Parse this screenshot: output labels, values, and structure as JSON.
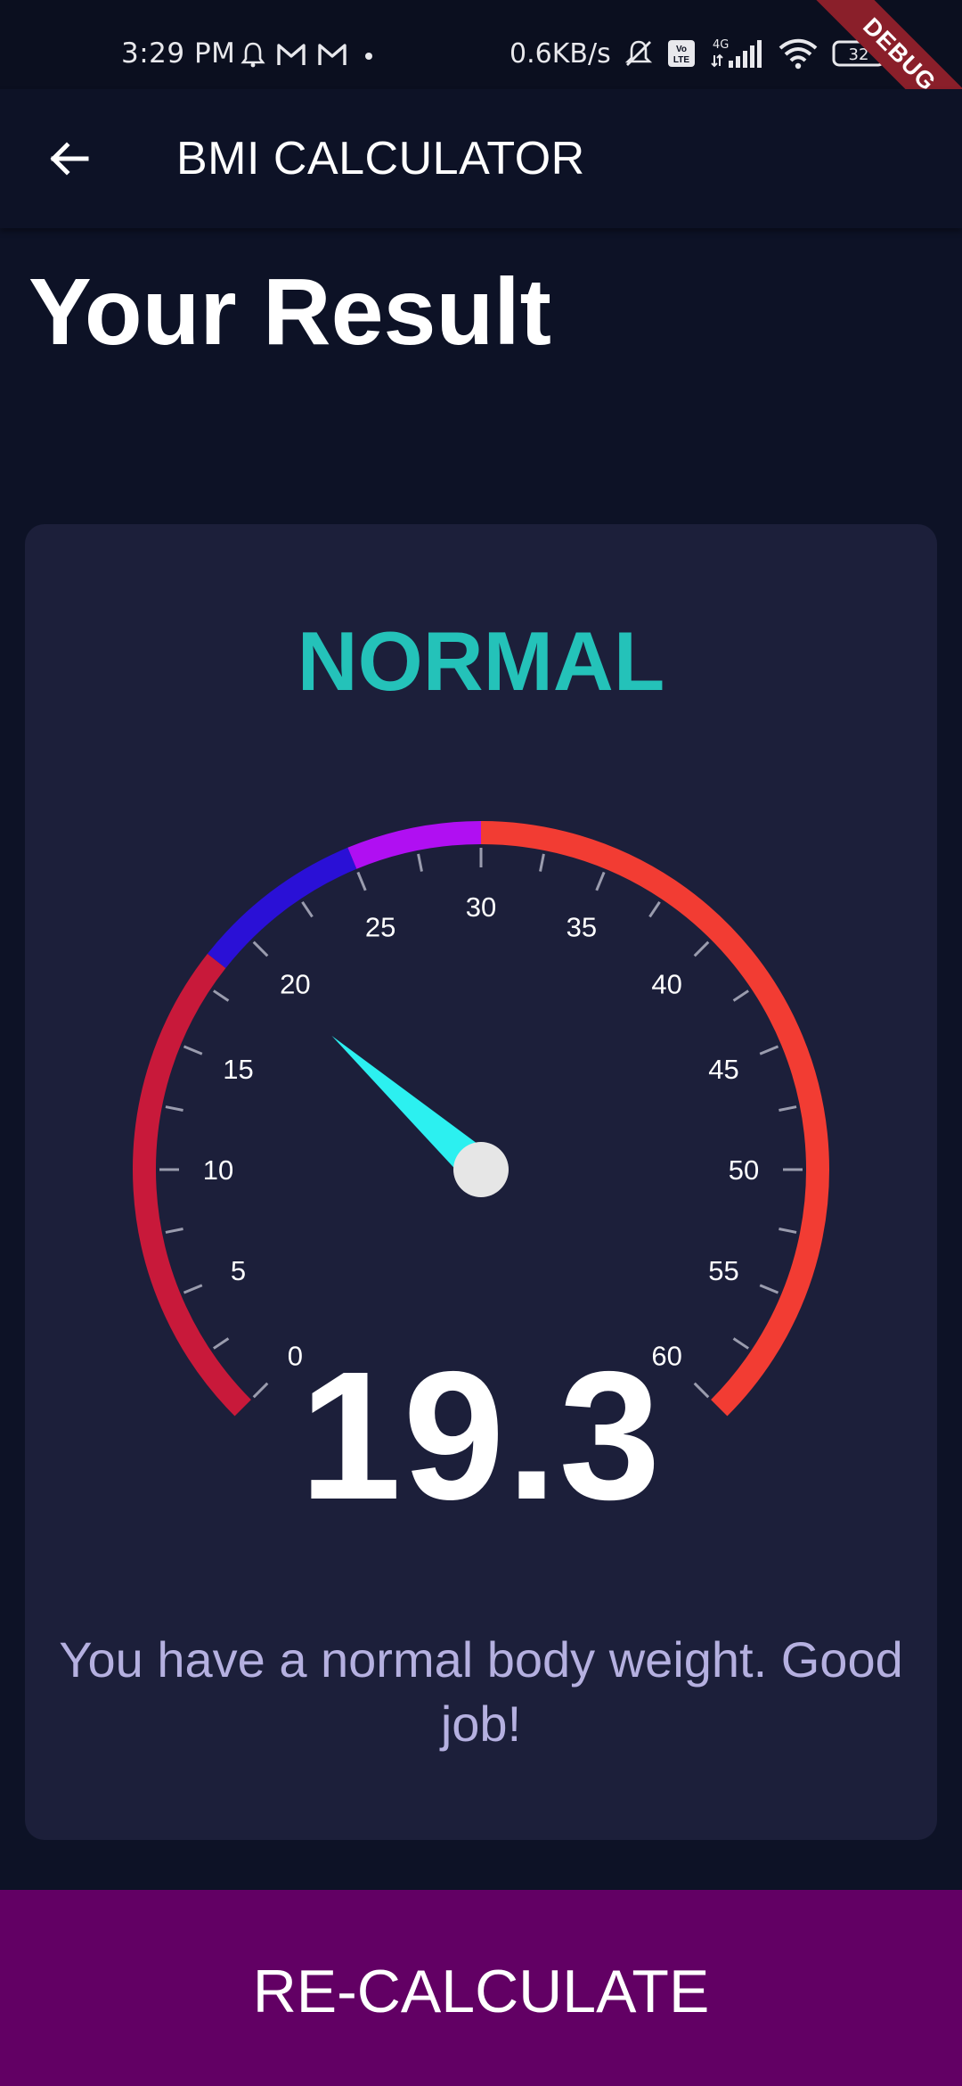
{
  "status_bar": {
    "time": "3:29 PM",
    "speed": "0.6KB/s",
    "battery": "32",
    "network": "4G",
    "volte": "Vo LTE",
    "icons": [
      "alarm-icon",
      "gmail-icon",
      "gmail-icon",
      "dot-icon",
      "mute-icon",
      "volte-icon",
      "signal-icon",
      "wifi-icon",
      "battery-icon"
    ]
  },
  "debug_banner": "DEBUG",
  "app_bar": {
    "title": "BMI CALCULATOR",
    "back_icon": "arrow-left-icon"
  },
  "page": {
    "heading": "Your Result",
    "category": "NORMAL",
    "bmi_value": "19.3",
    "message": "You have a normal body weight. Good job!",
    "button_label": "RE-CALCULATE"
  },
  "gauge": {
    "min": 0,
    "max": 60,
    "value": 19.3,
    "ticks": [
      "0",
      "5",
      "10",
      "15",
      "20",
      "25",
      "30",
      "35",
      "40",
      "45",
      "50",
      "55",
      "60"
    ],
    "ranges": [
      {
        "from": 0,
        "to": 18.5,
        "color": "#c8193a"
      },
      {
        "from": 18.5,
        "to": 25,
        "color": "#2a10d6"
      },
      {
        "from": 25,
        "to": 30,
        "color": "#b00ff2"
      },
      {
        "from": 30,
        "to": 60,
        "color": "#f23c33"
      }
    ],
    "needle_color": "#2cf0f0",
    "knob_color": "#e6e6e6"
  },
  "colors": {
    "background": "#0d1226",
    "card": "#1c1f3a",
    "category": "#24c2b9",
    "message": "#b5b0e0",
    "button": "#620064"
  }
}
